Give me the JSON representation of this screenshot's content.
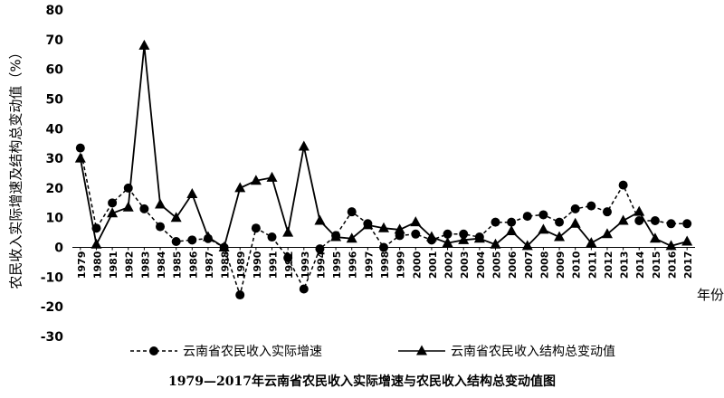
{
  "chart_data": {
    "type": "line",
    "title": "1979—2017年云南省农民收入实际增速与农民收入结构总变动值图",
    "ylabel": "农民收入实际增速及结构总变动值（%）",
    "xlabel": "年份",
    "ylim": [
      -30,
      80
    ],
    "yticks": [
      -30,
      -20,
      -10,
      0,
      10,
      20,
      30,
      40,
      50,
      60,
      70,
      80
    ],
    "grid": false,
    "legend": "bottom",
    "categories": [
      "1979",
      "1980",
      "1981",
      "1982",
      "1983",
      "1984",
      "1985",
      "1986",
      "1987",
      "1988",
      "1989",
      "1990",
      "1991",
      "1992",
      "1993",
      "1994",
      "1995",
      "1996",
      "1997",
      "1998",
      "1999",
      "2000",
      "2001",
      "2002",
      "2003",
      "2004",
      "2005",
      "2006",
      "2007",
      "2008",
      "2009",
      "2010",
      "2011",
      "2012",
      "2013",
      "2014",
      "2015",
      "2016",
      "2017"
    ],
    "series": [
      {
        "name": "云南省农民收入实际增速",
        "style": "dashed",
        "marker": "circle",
        "values": [
          33.5,
          6.5,
          15,
          20,
          13,
          7,
          2,
          2.5,
          3,
          0,
          -16,
          6.5,
          3.5,
          -3.5,
          -14,
          -0.5,
          4,
          12,
          8,
          0,
          4,
          4.5,
          2.5,
          4.5,
          4.5,
          3.5,
          8.5,
          8.5,
          10.5,
          11,
          8.5,
          13,
          14,
          12,
          21,
          9,
          9,
          8,
          8
        ]
      },
      {
        "name": "云南省农民收入结构总变动值",
        "style": "solid",
        "marker": "triangle",
        "values": [
          30,
          1,
          11.5,
          13.5,
          68,
          14.5,
          10,
          18,
          3.5,
          0,
          20,
          22.5,
          23.5,
          5,
          34,
          9,
          3.5,
          3,
          7.5,
          6.5,
          6,
          8.5,
          3.5,
          1.5,
          2.5,
          3,
          1,
          5.5,
          0.5,
          6,
          3.5,
          8,
          1.5,
          4.5,
          9,
          12,
          3,
          0.5,
          2
        ]
      }
    ]
  }
}
